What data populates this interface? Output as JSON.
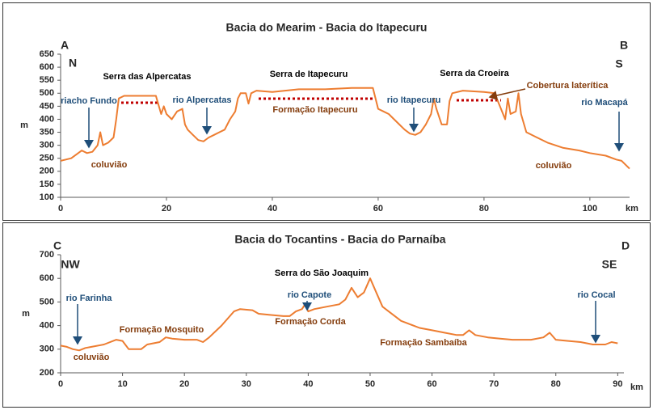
{
  "chart_data": [
    {
      "type": "line",
      "title": "Bacia do Mearim - Bacia do Itapecuru",
      "xlabel": "km",
      "ylabel": "m",
      "corners": [
        "A",
        "B",
        "N",
        "S"
      ],
      "x": [
        0,
        2,
        3,
        4,
        5,
        6,
        7,
        7.5,
        8,
        9,
        10,
        10.5,
        11,
        12,
        14,
        16,
        18,
        19,
        19.5,
        20,
        21,
        22,
        23,
        23.5,
        24,
        25,
        26,
        27,
        28,
        29,
        30,
        31,
        32,
        33,
        33.5,
        34,
        35,
        35.5,
        36,
        37,
        40,
        45,
        50,
        55,
        59,
        60,
        61,
        62,
        63,
        64,
        65,
        66,
        67,
        68,
        69,
        70,
        70.5,
        71,
        72,
        73,
        73.5,
        74,
        76,
        80,
        82,
        83,
        84,
        84.5,
        85,
        86,
        86.5,
        87,
        88,
        90,
        92,
        95,
        98,
        100,
        103,
        105,
        106,
        107.5
      ],
      "series": [
        {
          "color": "#ed7d31",
          "values": [
            240,
            250,
            265,
            280,
            270,
            275,
            300,
            350,
            300,
            310,
            330,
            400,
            480,
            490,
            490,
            490,
            490,
            420,
            450,
            420,
            400,
            430,
            440,
            380,
            360,
            340,
            320,
            315,
            330,
            340,
            350,
            360,
            400,
            430,
            480,
            500,
            500,
            460,
            500,
            510,
            505,
            515,
            515,
            520,
            520,
            440,
            430,
            420,
            400,
            380,
            360,
            345,
            340,
            350,
            380,
            420,
            480,
            440,
            380,
            380,
            470,
            500,
            510,
            505,
            500,
            450,
            400,
            480,
            420,
            430,
            500,
            420,
            350,
            330,
            310,
            290,
            280,
            270,
            260,
            245,
            240,
            210
          ]
        }
      ],
      "xlim": [
        0,
        107.5
      ],
      "ylim": [
        100,
        650
      ],
      "xticks": [
        0,
        20,
        40,
        60,
        80,
        100
      ],
      "yticks": [
        100,
        150,
        200,
        250,
        300,
        350,
        400,
        450,
        500,
        550,
        600,
        650
      ],
      "annotations": [
        {
          "text": "Serra das Alpercatas",
          "color": "#000000"
        },
        {
          "text": "Serra de Itapecuru",
          "color": "#000000"
        },
        {
          "text": "Serra da Croeira",
          "color": "#000000"
        },
        {
          "text": "Cobertura laterítica",
          "color": "#843c0c"
        },
        {
          "text": "riacho Fundo",
          "color": "#1f4e79"
        },
        {
          "text": "rio Alpercatas",
          "color": "#1f4e79"
        },
        {
          "text": "Formação Itapecuru",
          "color": "#843c0c"
        },
        {
          "text": "rio Itapecuru",
          "color": "#1f4e79"
        },
        {
          "text": "rio Macapá",
          "color": "#1f4e79"
        },
        {
          "text": "coluvião",
          "color": "#843c0c"
        },
        {
          "text": "coluvião",
          "color": "#843c0c"
        }
      ]
    },
    {
      "type": "line",
      "title": "Bacia do Tocantins - Bacia do Parnaíba",
      "xlabel": "km",
      "ylabel": "m",
      "corners": [
        "C",
        "D",
        "NW",
        "SE"
      ],
      "x": [
        0,
        1,
        2,
        3,
        4,
        5,
        7,
        9,
        10,
        11,
        13,
        14,
        16,
        17,
        18,
        20,
        22,
        23,
        24,
        26,
        28,
        29,
        31,
        32,
        34,
        36,
        37,
        38,
        39,
        39.5,
        40,
        41,
        43,
        45,
        46,
        47,
        48,
        49,
        50,
        51,
        52,
        53,
        54,
        55,
        56,
        58,
        60,
        62,
        64,
        65,
        66,
        67,
        69,
        71,
        73,
        76,
        78,
        79,
        80,
        82,
        84,
        86,
        88,
        89,
        90
      ],
      "series": [
        {
          "color": "#ed7d31",
          "values": [
            315,
            310,
            300,
            295,
            305,
            310,
            320,
            340,
            335,
            300,
            300,
            320,
            330,
            350,
            345,
            340,
            340,
            330,
            350,
            400,
            460,
            470,
            465,
            450,
            445,
            440,
            440,
            460,
            470,
            490,
            460,
            470,
            480,
            490,
            510,
            560,
            520,
            540,
            600,
            540,
            480,
            460,
            440,
            420,
            410,
            390,
            380,
            370,
            360,
            360,
            380,
            360,
            350,
            345,
            340,
            340,
            350,
            370,
            340,
            335,
            330,
            320,
            320,
            330,
            325
          ]
        }
      ],
      "xlim": [
        0,
        91
      ],
      "ylim": [
        200,
        700
      ],
      "xticks": [
        0,
        10,
        20,
        30,
        40,
        50,
        60,
        70,
        80,
        90
      ],
      "yticks": [
        200,
        300,
        400,
        500,
        600,
        700
      ],
      "annotations": [
        {
          "text": "Serra do São Joaquim",
          "color": "#000000"
        },
        {
          "text": "rio Farinha",
          "color": "#1f4e79"
        },
        {
          "text": "rio Capote",
          "color": "#1f4e79"
        },
        {
          "text": "Formação Mosquito",
          "color": "#843c0c"
        },
        {
          "text": "Formação Corda",
          "color": "#843c0c"
        },
        {
          "text": "Formação Sambaíba",
          "color": "#843c0c"
        },
        {
          "text": "rio Cocal",
          "color": "#1f4e79"
        },
        {
          "text": "coluvião",
          "color": "#843c0c"
        }
      ]
    }
  ]
}
